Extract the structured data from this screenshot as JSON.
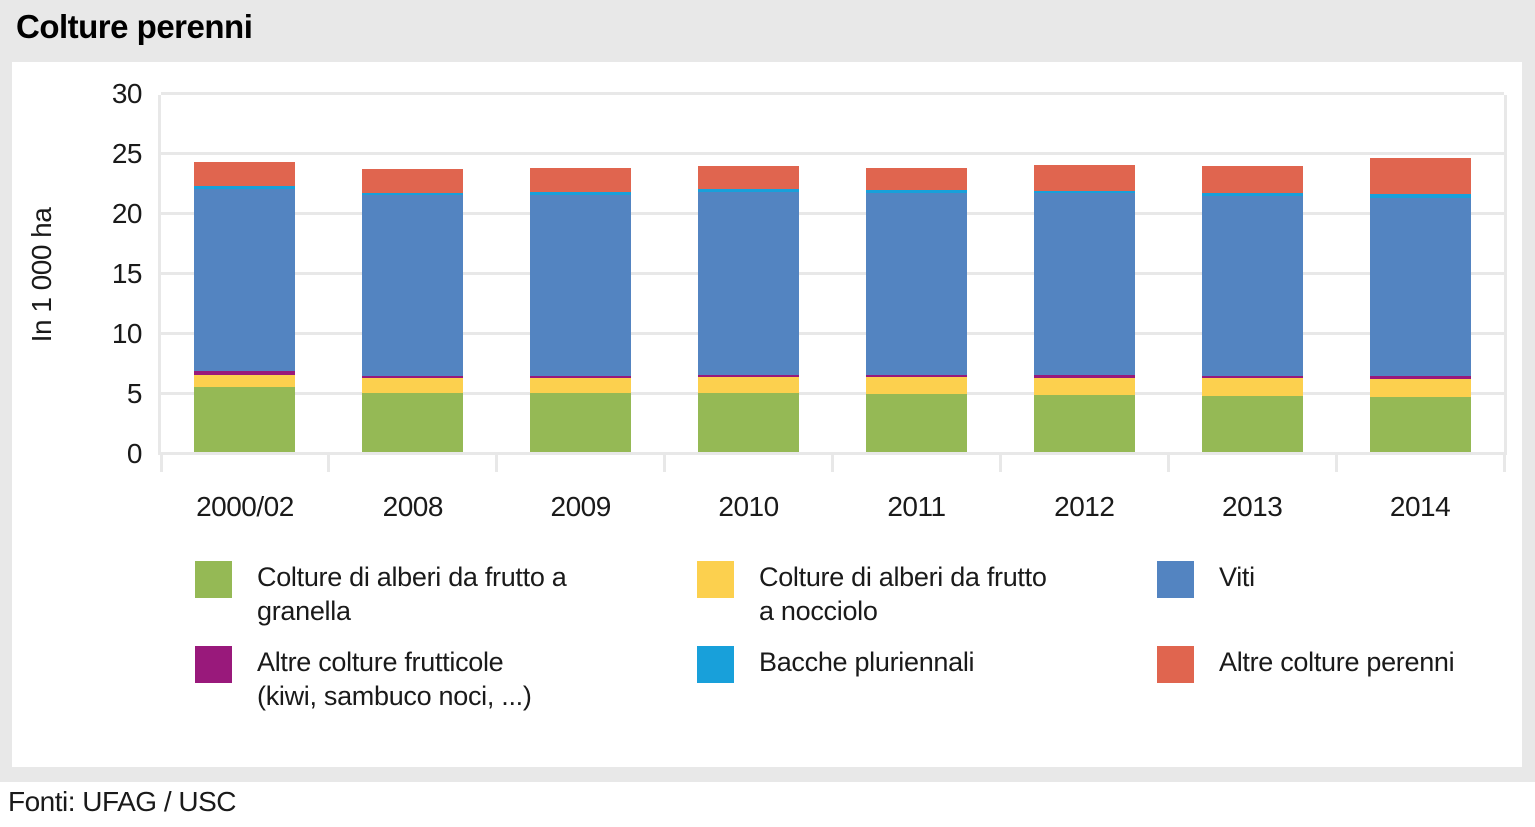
{
  "page": {
    "title": "Colture perenni",
    "source": "Fonti: UFAG / USC"
  },
  "colors": {
    "page_band": "#e8e8e8",
    "panel": "#ffffff",
    "grid": "#e8e8e8",
    "text": "#1a1a1a"
  },
  "chart_data": {
    "type": "bar",
    "stacked": true,
    "title": "Colture perenni",
    "xlabel": "",
    "ylabel": "In 1 000 ha",
    "ylim": [
      0,
      30
    ],
    "yticks": [
      0,
      5,
      10,
      15,
      20,
      25,
      30
    ],
    "grid": "horizontal",
    "legend_position": "bottom",
    "categories": [
      "2000/02",
      "2008",
      "2009",
      "2010",
      "2011",
      "2012",
      "2013",
      "2014"
    ],
    "series": [
      {
        "name": "Colture di alberi da frutto a granella",
        "color": "#95b955",
        "values": [
          5.4,
          4.95,
          4.9,
          4.9,
          4.85,
          4.75,
          4.7,
          4.6
        ]
      },
      {
        "name": "Colture di alberi da frutto a nocciolo",
        "color": "#fcd04e",
        "values": [
          1.0,
          1.2,
          1.3,
          1.35,
          1.4,
          1.45,
          1.45,
          1.5
        ]
      },
      {
        "name": "Altre colture frutticole (kiwi, sambuco noci, ...)",
        "color": "#99197b",
        "values": [
          0.35,
          0.15,
          0.15,
          0.2,
          0.2,
          0.2,
          0.2,
          0.2
        ]
      },
      {
        "name": "Viti",
        "color": "#5384c1",
        "values": [
          15.2,
          15.15,
          15.1,
          15.25,
          15.1,
          15.2,
          15.0,
          14.9
        ]
      },
      {
        "name": "Bacche pluriennali",
        "color": "#18a0da",
        "values": [
          0.25,
          0.15,
          0.2,
          0.2,
          0.25,
          0.15,
          0.25,
          0.3
        ]
      },
      {
        "name": "Altre colture perenni",
        "color": "#e0654f",
        "values": [
          1.95,
          1.95,
          2.0,
          1.95,
          1.9,
          2.2,
          2.25,
          3.0
        ]
      }
    ],
    "totals": [
      24.15,
      23.55,
      23.65,
      23.85,
      23.7,
      23.95,
      23.85,
      24.5
    ]
  },
  "legend": {
    "items": [
      {
        "label": "Colture di alberi da frutto a\ngranella",
        "color": "#95b955"
      },
      {
        "label": "Colture di alberi da frutto\na nocciolo",
        "color": "#fcd04e"
      },
      {
        "label": "Viti",
        "color": "#5384c1"
      },
      {
        "label": "Altre colture frutticole\n(kiwi, sambuco noci, ...)",
        "color": "#99197b"
      },
      {
        "label": "Bacche pluriennali",
        "color": "#18a0da"
      },
      {
        "label": "Altre colture perenni",
        "color": "#e0654f"
      }
    ]
  }
}
